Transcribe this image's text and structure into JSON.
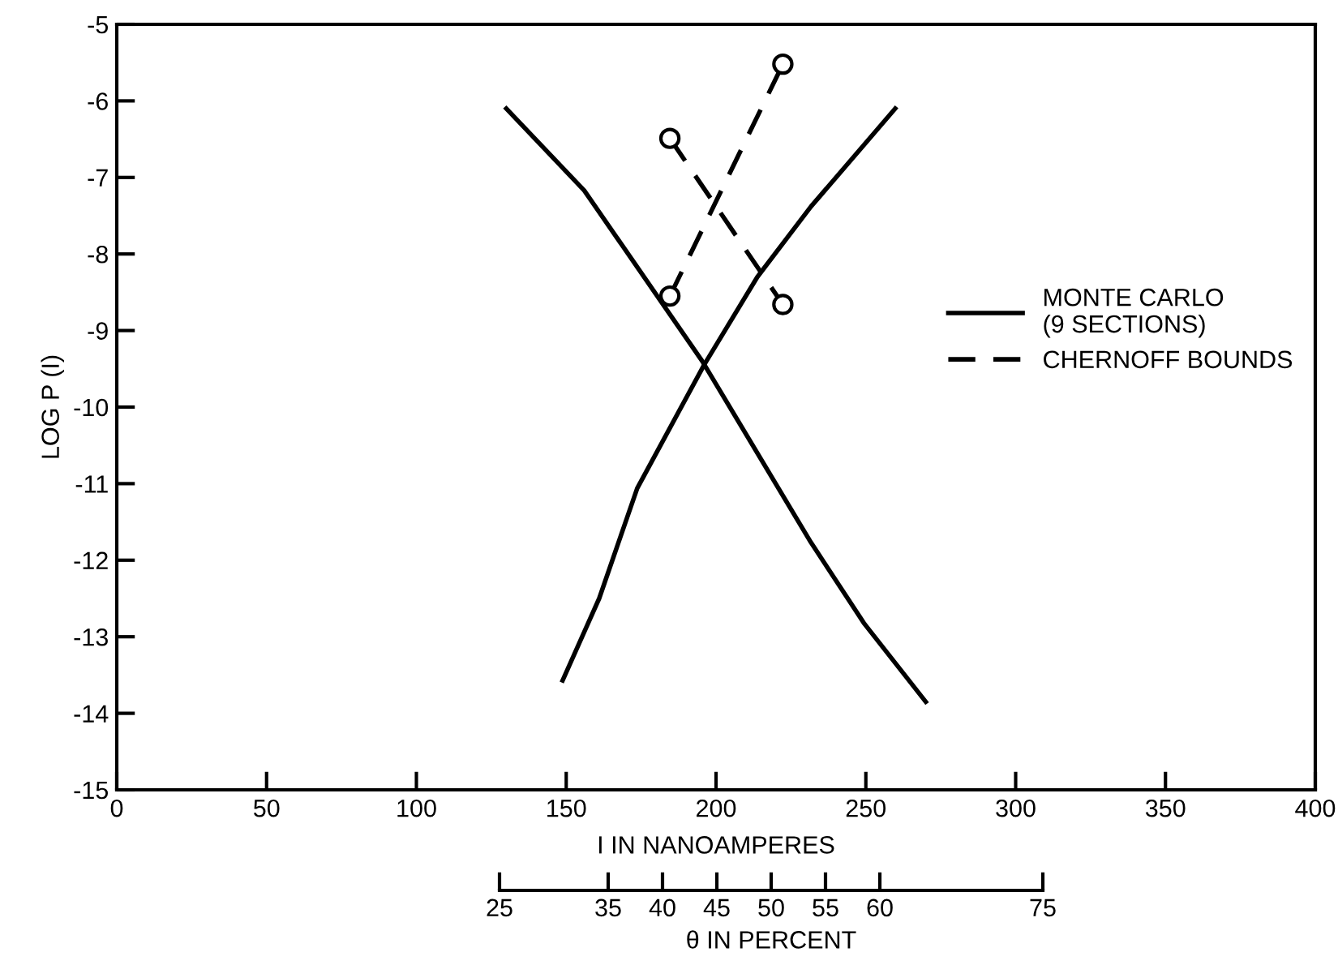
{
  "chart_data": {
    "type": "line",
    "xlabel": "I IN NANOAMPERES",
    "ylabel": "LOG P (I)",
    "x2label": "θ IN PERCENT",
    "xlim": [
      0,
      400
    ],
    "xticks": [
      0,
      50,
      100,
      150,
      200,
      250,
      300,
      350,
      400
    ],
    "ylim": [
      -15,
      -5
    ],
    "yticks": [
      -15,
      -14,
      -13,
      -12,
      -11,
      -10,
      -9,
      -8,
      -7,
      -6,
      -5
    ],
    "x2lim": [
      25,
      75
    ],
    "x2ticks": [
      25,
      35,
      40,
      45,
      50,
      55,
      60,
      75
    ],
    "grid": false,
    "legend": "right",
    "series": [
      {
        "name": "MONTE CARLO\n(9 SECTIONS)",
        "color": "#000000",
        "line_style": "solid",
        "marker": "none",
        "x": [
          130,
          156,
          195.4,
          231.7,
          249.5,
          270
        ],
        "values": [
          -6.1,
          -7.17,
          -9.4,
          -11.77,
          -12.83,
          -13.85
        ]
      },
      {
        "color": "#000000",
        "line_style": "solid",
        "marker": "none",
        "x": [
          148.8,
          161,
          173.7,
          196,
          213.8,
          231.7,
          259.8
        ],
        "values": [
          -13.57,
          -12.5,
          -11.06,
          -9.45,
          -8.3,
          -7.38,
          -6.1
        ]
      },
      {
        "name": "CHERNOFF BOUNDS",
        "color": "#000000",
        "line_style": "dashed",
        "marker": "circle",
        "x": [
          184.6,
          222.3
        ],
        "values": [
          -6.49,
          -8.66
        ]
      },
      {
        "color": "#000000",
        "line_style": "dashed",
        "marker": "circle",
        "x": [
          184.6,
          222.3
        ],
        "values": [
          -8.55,
          -5.52
        ]
      }
    ]
  }
}
